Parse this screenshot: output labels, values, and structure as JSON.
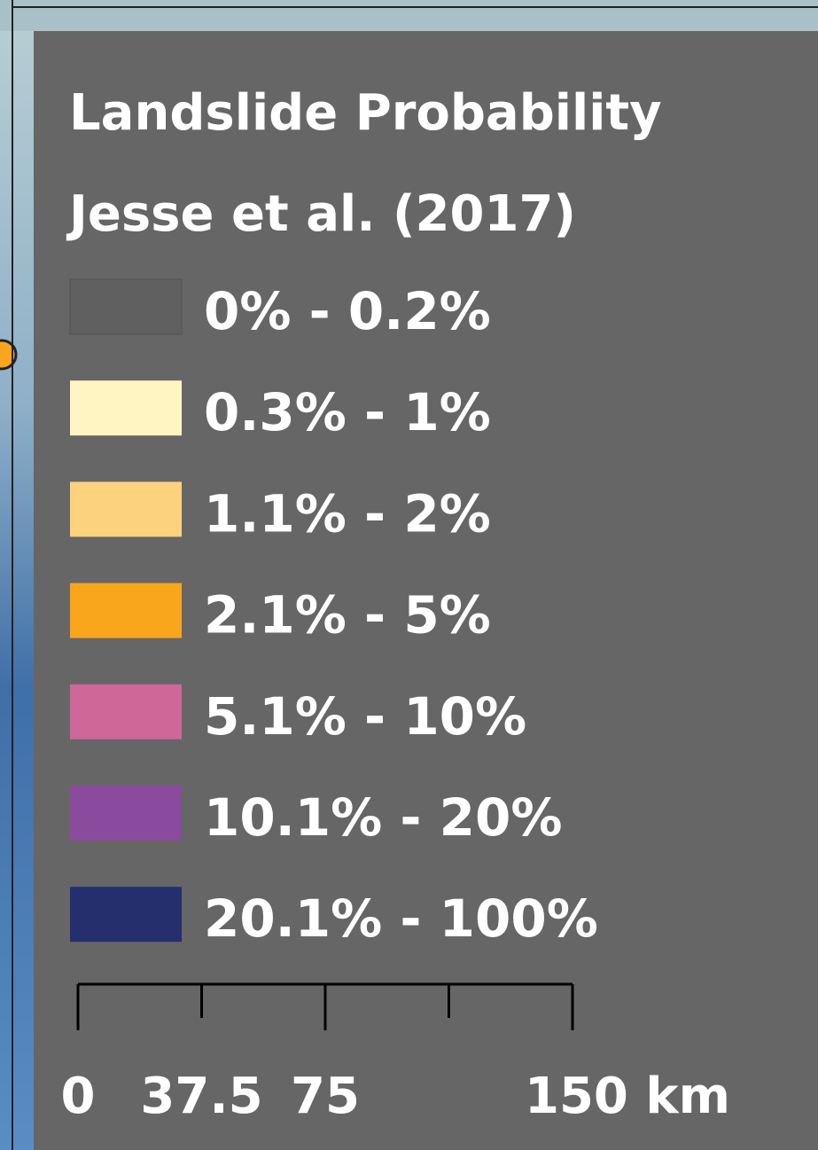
{
  "legend": {
    "title": "Landslide Probability",
    "subtitle": "Jesse et al. (2017)",
    "items": [
      {
        "label": "0% - 0.2%",
        "color": "#606060"
      },
      {
        "label": "0.3% - 1%",
        "color": "#fff5c2"
      },
      {
        "label": "1.1% - 2%",
        "color": "#fdd27f"
      },
      {
        "label": "2.1% - 5%",
        "color": "#f9a61d"
      },
      {
        "label": "5.1% - 10%",
        "color": "#cf6799"
      },
      {
        "label": "10.1% - 20%",
        "color": "#8a4b9f"
      },
      {
        "label": "20.1% - 100%",
        "color": "#262f6e"
      }
    ]
  },
  "scale_bar": {
    "xlim": [
      0,
      150
    ],
    "xticks": [
      0,
      37.5,
      75,
      {
        "value": 112.5,
        "label": null
      },
      {
        "value": 150,
        "label": "150 km"
      }
    ]
  }
}
